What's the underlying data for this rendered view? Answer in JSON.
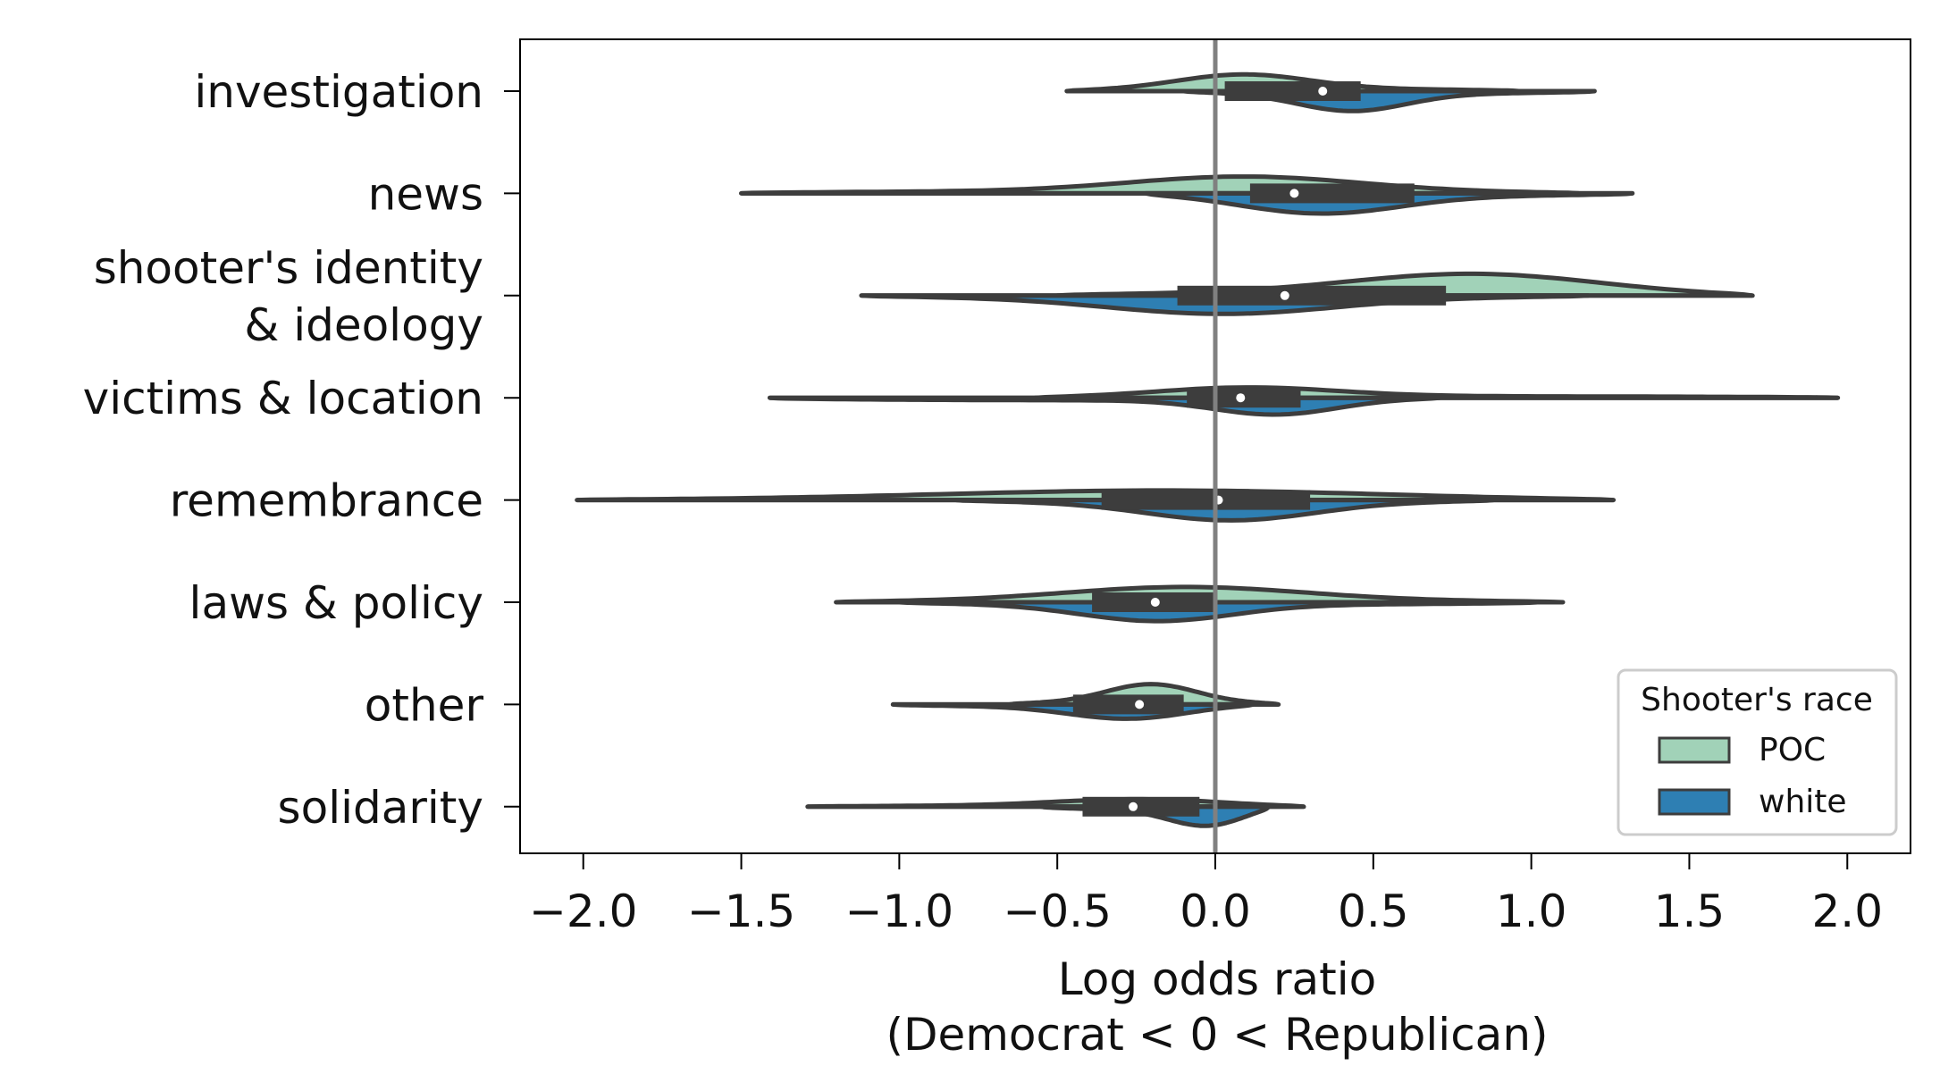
{
  "chart_data": {
    "type": "violin",
    "orientation": "horizontal",
    "split": true,
    "xlabel_line1": "Log odds ratio",
    "xlabel_line2": "(Democrat < 0 < Republican)",
    "xlim": [
      -2.2,
      2.2
    ],
    "x_ticks": [
      -2.0,
      -1.5,
      -1.0,
      -0.5,
      0.0,
      0.5,
      1.0,
      1.5,
      2.0
    ],
    "x_tick_labels": [
      "−2.0",
      "−1.5",
      "−1.0",
      "−0.5",
      "0.0",
      "0.5",
      "1.0",
      "1.5",
      "2.0"
    ],
    "reference_line_x": 0.0,
    "categories": [
      {
        "label": [
          "investigation"
        ]
      },
      {
        "label": [
          "news"
        ]
      },
      {
        "label": [
          "shooter's identity",
          "& ideology"
        ]
      },
      {
        "label": [
          "victims & location"
        ]
      },
      {
        "label": [
          "remembrance"
        ]
      },
      {
        "label": [
          "laws & policy"
        ]
      },
      {
        "label": [
          "other"
        ]
      },
      {
        "label": [
          "solidarity"
        ]
      }
    ],
    "legend": {
      "title": "Shooter's race",
      "placement": "lower-right",
      "entries": [
        {
          "name": "POC",
          "color": "#a1d2b8"
        },
        {
          "name": "white",
          "color": "#2e7fb3"
        }
      ]
    },
    "series": [
      {
        "name": "POC",
        "side": "upper",
        "color": "#a1d2b8",
        "violins": [
          {
            "min": -0.47,
            "max": 0.96,
            "peak": 0.07,
            "spread": 0.22,
            "height": 0.34
          },
          {
            "min": -1.5,
            "max": 1.15,
            "peak": 0.12,
            "spread": 0.38,
            "height": 0.34
          },
          {
            "min": -0.5,
            "max": 1.7,
            "peak": 0.85,
            "spread": 0.42,
            "height": 0.44
          },
          {
            "min": -0.57,
            "max": 1.97,
            "peak": 0.05,
            "spread": 0.3,
            "height": 0.24
          },
          {
            "min": -2.02,
            "max": 1.26,
            "peak": -0.1,
            "spread": 0.75,
            "height": 0.19
          },
          {
            "min": -1.2,
            "max": 1.1,
            "peak": -0.1,
            "spread": 0.4,
            "height": 0.3
          },
          {
            "min": -0.65,
            "max": 0.2,
            "peak": -0.2,
            "spread": 0.15,
            "height": 0.4
          },
          {
            "min": -1.29,
            "max": 0.28,
            "peak": -0.2,
            "spread": 0.28,
            "height": 0.16
          }
        ]
      },
      {
        "name": "white",
        "side": "lower",
        "color": "#2e7fb3",
        "violins": [
          {
            "min": -0.1,
            "max": 1.2,
            "peak": 0.42,
            "spread": 0.18,
            "height": 0.4
          },
          {
            "min": -0.22,
            "max": 1.32,
            "peak": 0.3,
            "spread": 0.27,
            "height": 0.42
          },
          {
            "min": -1.12,
            "max": 1.18,
            "peak": 0.02,
            "spread": 0.38,
            "height": 0.36
          },
          {
            "min": -1.41,
            "max": 0.71,
            "peak": 0.22,
            "spread": 0.2,
            "height": 0.4
          },
          {
            "min": -0.82,
            "max": 0.88,
            "peak": 0.05,
            "spread": 0.28,
            "height": 0.4
          },
          {
            "min": -1.0,
            "max": 1.02,
            "peak": -0.2,
            "spread": 0.25,
            "height": 0.38
          },
          {
            "min": -1.02,
            "max": 0.12,
            "peak": -0.25,
            "spread": 0.2,
            "height": 0.3
          },
          {
            "min": -0.55,
            "max": 0.17,
            "peak": 0.0,
            "spread": 0.13,
            "height": 0.44
          }
        ]
      }
    ],
    "box_stats": [
      {
        "q1": 0.03,
        "median": 0.34,
        "q3": 0.46
      },
      {
        "q1": 0.11,
        "median": 0.25,
        "q3": 0.63
      },
      {
        "q1": -0.12,
        "median": 0.22,
        "q3": 0.73
      },
      {
        "q1": -0.09,
        "median": 0.08,
        "q3": 0.27
      },
      {
        "q1": -0.36,
        "median": 0.01,
        "q3": 0.3
      },
      {
        "q1": -0.39,
        "median": -0.19,
        "q3": 0.0
      },
      {
        "q1": -0.45,
        "median": -0.24,
        "q3": -0.1
      },
      {
        "q1": -0.42,
        "median": -0.26,
        "q3": -0.05
      }
    ]
  }
}
